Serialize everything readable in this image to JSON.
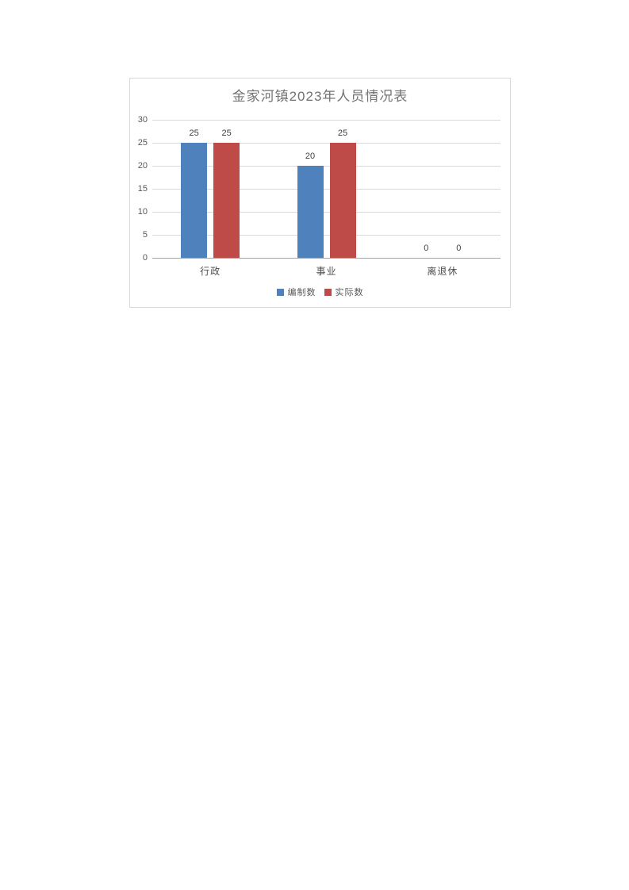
{
  "page": {
    "background": "#ffffff"
  },
  "chart_data": {
    "type": "bar",
    "title": "金家河镇2023年人员情况表",
    "categories": [
      "行政",
      "事业",
      "离退休"
    ],
    "series": [
      {
        "name": "编制数",
        "color": "#4F81BD",
        "values": [
          25,
          20,
          0
        ]
      },
      {
        "name": "实际数",
        "color": "#BE4B48",
        "values": [
          25,
          25,
          0
        ]
      }
    ],
    "ylim": [
      0,
      30
    ],
    "yticks": [
      0,
      5,
      10,
      15,
      20,
      25,
      30
    ],
    "grid": true,
    "data_labels": true,
    "legend_position": "bottom",
    "colors": {
      "title_text": "#737373",
      "tick_text": "#595959",
      "gridline": "#d9d9d9",
      "axis_line": "#a6a6a6",
      "chart_border": "#d9d9d9"
    }
  }
}
